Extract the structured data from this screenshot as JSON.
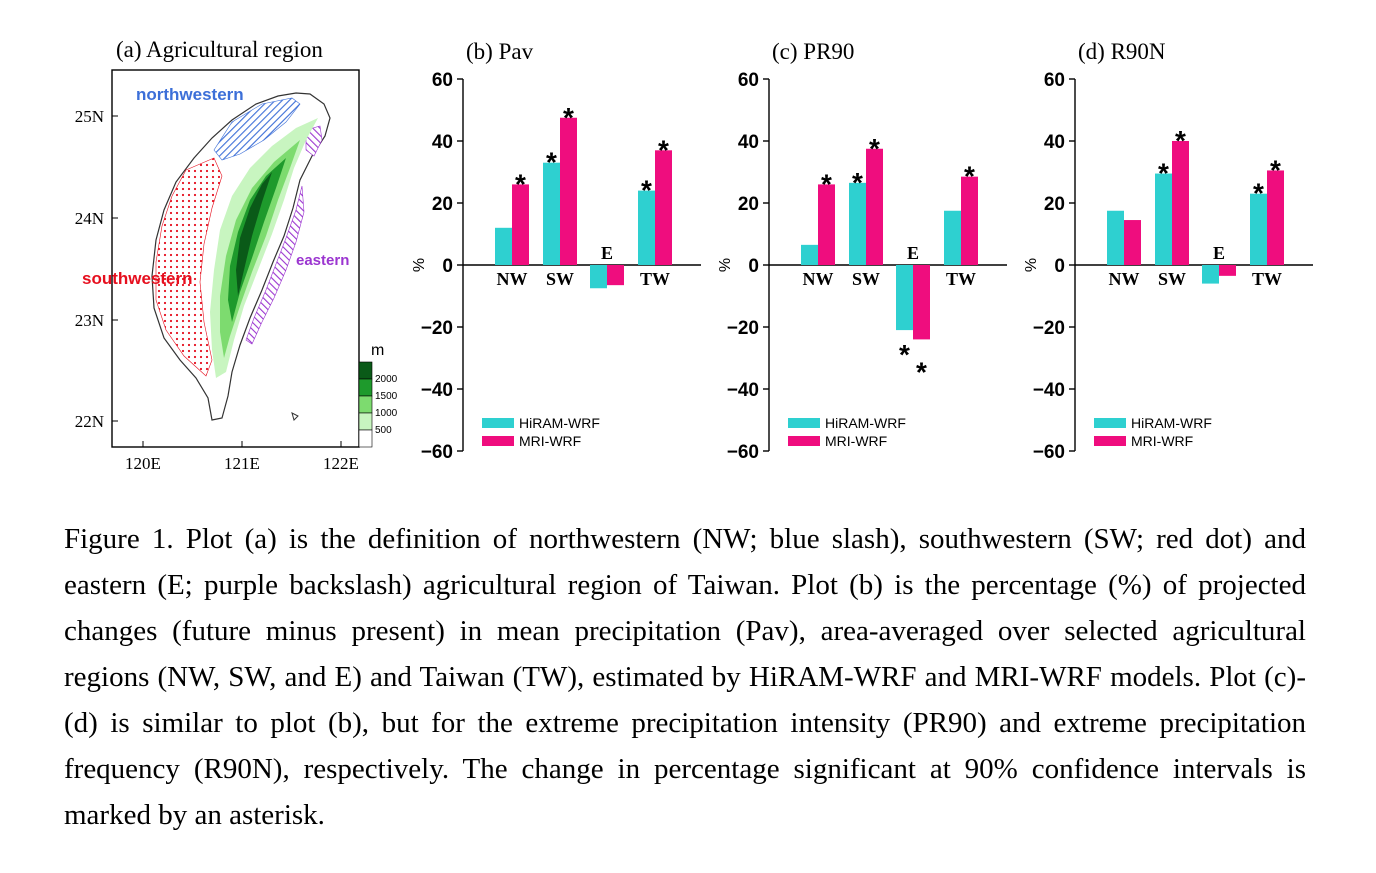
{
  "colors": {
    "hiram": "#2ed0d0",
    "mri": "#ef0d7e",
    "northwestern": "#3c6fd8",
    "southwestern": "#e60f1e",
    "eastern": "#9b35d0",
    "terrain_low": "#c8f5c0",
    "terrain_mid": "#7ddb6f",
    "terrain_high": "#1e9a2c",
    "terrain_peak": "#0a5a18"
  },
  "map": {
    "title": "(a) Agricultural region",
    "region_labels": {
      "northwestern": "northwestern",
      "southwestern": "southwestern",
      "eastern": "eastern"
    },
    "lat_ticks": [
      "25N",
      "24N",
      "23N",
      "22N"
    ],
    "lon_ticks": [
      "120E",
      "121E",
      "122E"
    ],
    "colorbar": {
      "unit": "m",
      "levels": [
        "2000",
        "1500",
        "1000",
        "500"
      ]
    }
  },
  "chart_data": [
    {
      "type": "bar",
      "title": "(b) Pav",
      "ylabel": "%",
      "ylim": [
        -60,
        60
      ],
      "yticks": [
        "60",
        "40",
        "20",
        "0",
        "−20",
        "−40",
        "−60"
      ],
      "categories": [
        "NW",
        "SW",
        "E",
        "TW"
      ],
      "series": [
        {
          "name": "HiRAM-WRF",
          "values": [
            12,
            33,
            -7.5,
            24
          ],
          "significant": [
            false,
            true,
            false,
            true
          ]
        },
        {
          "name": "MRI-WRF",
          "values": [
            26,
            47.5,
            -6.5,
            37
          ],
          "significant": [
            true,
            true,
            false,
            true
          ]
        }
      ],
      "significance_marker": "*"
    },
    {
      "type": "bar",
      "title": "(c) PR90",
      "ylabel": "%",
      "ylim": [
        -60,
        60
      ],
      "yticks": [
        "60",
        "40",
        "20",
        "0",
        "−20",
        "−40",
        "−60"
      ],
      "categories": [
        "NW",
        "SW",
        "E",
        "TW"
      ],
      "series": [
        {
          "name": "HiRAM-WRF",
          "values": [
            6.5,
            26.5,
            -21,
            17.5
          ],
          "significant": [
            false,
            true,
            true,
            false
          ]
        },
        {
          "name": "MRI-WRF",
          "values": [
            26,
            37.5,
            -24,
            28.5
          ],
          "significant": [
            true,
            true,
            true,
            true
          ]
        }
      ],
      "significance_marker": "*"
    },
    {
      "type": "bar",
      "title": "(d) R90N",
      "ylabel": "%",
      "ylim": [
        -60,
        60
      ],
      "yticks": [
        "60",
        "40",
        "20",
        "0",
        "−20",
        "−40",
        "−60"
      ],
      "categories": [
        "NW",
        "SW",
        "E",
        "TW"
      ],
      "series": [
        {
          "name": "HiRAM-WRF",
          "values": [
            17.5,
            29.5,
            -6,
            23
          ],
          "significant": [
            false,
            true,
            false,
            true
          ]
        },
        {
          "name": "MRI-WRF",
          "values": [
            14.5,
            40,
            -3.5,
            30.5
          ],
          "significant": [
            false,
            true,
            false,
            true
          ]
        }
      ],
      "significance_marker": "*"
    }
  ],
  "caption": "Figure 1. Plot (a) is the definition of northwestern (NW; blue slash), southwestern (SW; red dot) and eastern (E; purple backslash) agricultural region of Taiwan. Plot (b) is the percentage (%) of projected changes (future minus present) in mean precipitation (Pav), area-averaged over selected agricultural regions (NW, SW, and E) and Taiwan (TW), estimated by HiRAM-WRF and MRI-WRF models. Plot (c)-(d) is similar to plot (b), but for the extreme precipitation intensity (PR90) and extreme precipitation frequency (R90N), respectively. The change in percentage significant at 90% confidence intervals is marked by an asterisk."
}
